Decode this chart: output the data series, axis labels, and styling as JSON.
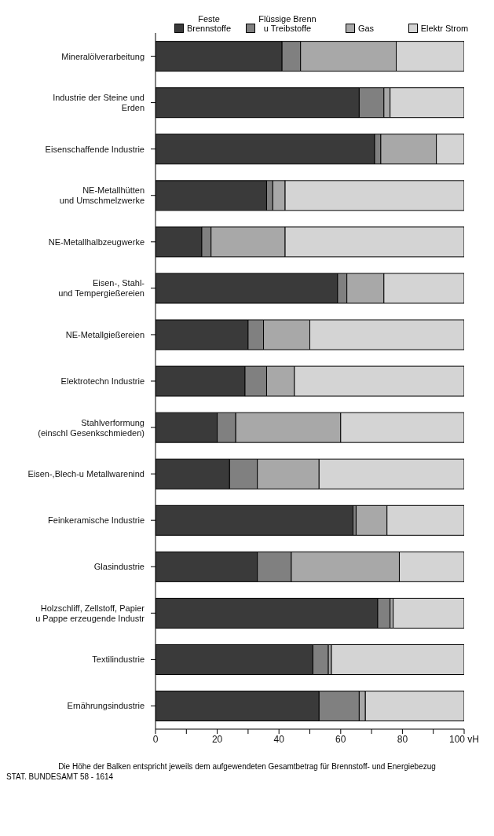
{
  "chart_data": {
    "type": "bar",
    "orientation": "horizontal",
    "stacked": true,
    "legend": "top",
    "categories": [
      "Mineralölverarbeitung",
      "Industrie der Steine und\nErden",
      "Eisenschaffende Industrie",
      "NE-Metallhütten\nund Umschmelzwerke",
      "NE-Metallhalbzeugwerke",
      "Eisen-, Stahl-\nund Tempergießereien",
      "NE-Metallgießereien",
      "Elektrotechn Industrie",
      "Stahlverformung\n(einschl Gesenkschmieden)",
      "Eisen-,Blech-u Metallwarenind",
      "Feinkeramische Industrie",
      "Glasindustrie",
      "Holzschliff, Zellstoff, Papier\nu Pappe erzeugende Industr",
      "Textilindustrie",
      "Ernährungsindustrie"
    ],
    "series": [
      {
        "name": "Feste\nBrennstoffe",
        "color": "#3a3a3a",
        "values": [
          41,
          66,
          71,
          36,
          15,
          59,
          30,
          29,
          20,
          24,
          64,
          33,
          72,
          51,
          53
        ]
      },
      {
        "name": "Flüssige Brenn\nu Treibstoffe",
        "color": "#808080",
        "values": [
          6,
          8,
          2,
          2,
          3,
          3,
          5,
          7,
          6,
          9,
          1,
          11,
          4,
          5,
          13
        ]
      },
      {
        "name": "Gas",
        "color": "#a8a8a8",
        "values": [
          31,
          2,
          18,
          4,
          24,
          12,
          15,
          9,
          34,
          20,
          10,
          35,
          1,
          1,
          2
        ]
      },
      {
        "name": "Elektr Strom",
        "color": "#d4d4d4",
        "values": [
          22,
          24,
          9,
          58,
          58,
          26,
          50,
          55,
          40,
          47,
          25,
          21,
          23,
          43,
          32
        ]
      }
    ],
    "xlim": [
      0,
      100
    ],
    "xticks": [
      0,
      {
        "value": 10,
        "label": null
      },
      20,
      {
        "value": 30,
        "label": null
      },
      40,
      {
        "value": 50,
        "label": null
      },
      60,
      {
        "value": 70,
        "label": null
      },
      80,
      {
        "value": 90,
        "label": null
      },
      {
        "value": 100,
        "label": "100 vH"
      }
    ],
    "grid": false,
    "annotations": [
      "Die Höhe der Balken entspricht jeweils dem aufgewendeten Gesamtbetrag für Brennstoff- und Energiebezug",
      "STAT. BUNDESAMT 58 - 1614"
    ]
  }
}
